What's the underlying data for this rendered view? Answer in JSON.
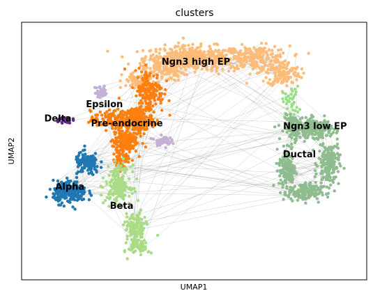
{
  "chart_data": {
    "type": "scatter",
    "title": "clusters",
    "xlabel": "UMAP1",
    "ylabel": "UMAP2",
    "x_ticks": [],
    "y_ticks": [],
    "grid": false,
    "legend": "on data",
    "edge_color": "#808080",
    "xlim": [
      0,
      100
    ],
    "ylim": [
      0,
      100
    ],
    "clusters": [
      {
        "name": "Ngn3 high EP",
        "color": "#ffbb78",
        "label_x": 50.5,
        "label_y": 84.5,
        "blobs": [
          [
            50,
            86,
            12,
            4,
            420
          ],
          [
            68,
            86,
            8,
            4,
            200
          ],
          [
            76,
            80,
            4,
            4,
            120
          ],
          [
            41,
            82,
            5,
            4,
            110
          ],
          [
            34,
            77,
            4,
            3,
            70
          ]
        ]
      },
      {
        "name": "Ngn3 low EP",
        "color": "#98df8a",
        "label_x": 85,
        "label_y": 59.5,
        "blobs": [
          [
            78,
            69,
            2,
            5,
            40
          ]
        ]
      },
      {
        "name": "Ductal",
        "color": "#8fbc8f",
        "label_x": 80.5,
        "label_y": 48.5,
        "blobs": [
          [
            79,
            59,
            2.5,
            4,
            120
          ],
          [
            85,
            59,
            4,
            3,
            180
          ],
          [
            89,
            45,
            2.5,
            7,
            180
          ],
          [
            82,
            34,
            4,
            3,
            160
          ],
          [
            77,
            43,
            2,
            7,
            160
          ]
        ]
      },
      {
        "name": "Pre-endocrine",
        "color": "#ff7f0e",
        "label_x": 30.5,
        "label_y": 60.5,
        "blobs": [
          [
            37,
            73,
            3.5,
            7,
            160
          ],
          [
            33,
            62,
            4,
            4,
            200
          ],
          [
            30,
            54,
            3,
            4,
            170
          ],
          [
            26,
            62,
            5,
            3,
            120
          ],
          [
            29,
            47,
            2,
            4,
            80
          ]
        ]
      },
      {
        "name": "Epsilon",
        "color": "#c5b0d5",
        "label_x": 24,
        "label_y": 68,
        "blobs": [
          [
            23,
            73,
            1.5,
            2,
            40
          ],
          [
            41,
            54,
            2,
            1.5,
            45
          ]
        ]
      },
      {
        "name": "Delta",
        "color": "#5e2a84",
        "label_x": 10.5,
        "label_y": 62.5,
        "blobs": [
          [
            12,
            62,
            2,
            1,
            25
          ]
        ]
      },
      {
        "name": "Alpha",
        "color": "#1f77b4",
        "label_x": 14,
        "label_y": 36,
        "blobs": [
          [
            14,
            34,
            4,
            3.5,
            230
          ],
          [
            19,
            45,
            3,
            3.5,
            140
          ]
        ]
      },
      {
        "name": "Beta",
        "color": "#aadb85",
        "label_x": 29,
        "label_y": 28.5,
        "blobs": [
          [
            28,
            37,
            3,
            6,
            200
          ],
          [
            33,
            20,
            2.5,
            5,
            130
          ],
          [
            34,
            13,
            2.5,
            3,
            70
          ]
        ]
      }
    ]
  }
}
